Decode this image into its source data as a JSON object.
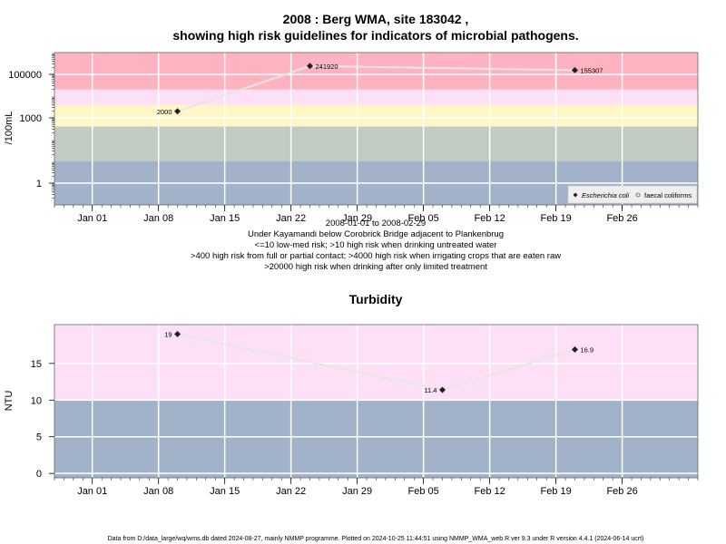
{
  "chart_data": [
    {
      "type": "scatter",
      "title_line1": "2008 : Berg WMA, site 183042 ,",
      "title_line2": "showing high risk guidelines for indicators of microbial pathogens.",
      "ylabel": "/100mL",
      "yscale": "log",
      "ylim": [
        0.1,
        1000000
      ],
      "yticks": [
        {
          "value": 1,
          "label": "1"
        },
        {
          "value": 1000,
          "label": "1000"
        },
        {
          "value": 100000,
          "label": "100000"
        }
      ],
      "xlim": [
        "2007-12-28",
        "2008-03-05"
      ],
      "xticks": [
        {
          "date": "2008-01-01",
          "label": "Jan 01"
        },
        {
          "date": "2008-01-08",
          "label": "Jan 08"
        },
        {
          "date": "2008-01-15",
          "label": "Jan 15"
        },
        {
          "date": "2008-01-22",
          "label": "Jan 22"
        },
        {
          "date": "2008-01-29",
          "label": "Jan 29"
        },
        {
          "date": "2008-02-05",
          "label": "Feb 05"
        },
        {
          "date": "2008-02-12",
          "label": "Feb 12"
        },
        {
          "date": "2008-02-19",
          "label": "Feb 19"
        },
        {
          "date": "2008-02-26",
          "label": "Feb 26"
        }
      ],
      "bands": [
        {
          "from": 0.1,
          "to": 10,
          "color": "#a2b3c9"
        },
        {
          "from": 10,
          "to": 400,
          "color": "#c2cbc1"
        },
        {
          "from": 400,
          "to": 4000,
          "color": "#fff7c6"
        },
        {
          "from": 4000,
          "to": 20000,
          "color": "#fde0f8"
        },
        {
          "from": 20000,
          "to": 1000000,
          "color": "#ffb3c1"
        }
      ],
      "series": [
        {
          "name": "Escherichia coli",
          "marker": "filled-diamond",
          "color": "#202020",
          "points": [
            {
              "x": "2008-01-10",
              "y": 2000,
              "label": "2000"
            },
            {
              "x": "2008-01-24",
              "y": 241920,
              "label": "241920"
            },
            {
              "x": "2008-02-21",
              "y": 155307,
              "label": "155307"
            }
          ]
        }
      ],
      "legend": {
        "placement": "bottom-right",
        "entries": [
          {
            "name": "Escherichia coli",
            "marker": "filled-diamond",
            "italic": true
          },
          {
            "name": "faecal coliforms",
            "marker": "open-circle",
            "italic": false
          }
        ]
      },
      "caption": [
        "2008-01-01 to 2008-02-29",
        "Under Kayamandi below Corobrick Bridge adjacent to Plankenbrug",
        "<=10 low-med risk; >10 high risk when drinking untreated water",
        ">400 high risk from full or partial contact; >4000 high risk when irrigating crops that are eaten raw",
        ">20000 high risk when drinking after only limited treatment"
      ],
      "grid": true
    },
    {
      "type": "scatter",
      "title": "Turbidity",
      "ylabel": "NTU",
      "yscale": "linear",
      "ylim": [
        -0.6,
        20.3
      ],
      "yticks": [
        {
          "value": 0,
          "label": "0"
        },
        {
          "value": 5,
          "label": "5"
        },
        {
          "value": 10,
          "label": "10"
        },
        {
          "value": 15,
          "label": "15"
        }
      ],
      "xlim": [
        "2007-12-28",
        "2008-03-05"
      ],
      "xticks": [
        {
          "date": "2008-01-01",
          "label": "Jan 01"
        },
        {
          "date": "2008-01-08",
          "label": "Jan 08"
        },
        {
          "date": "2008-01-15",
          "label": "Jan 15"
        },
        {
          "date": "2008-01-22",
          "label": "Jan 22"
        },
        {
          "date": "2008-01-29",
          "label": "Jan 29"
        },
        {
          "date": "2008-02-05",
          "label": "Feb 05"
        },
        {
          "date": "2008-02-12",
          "label": "Feb 12"
        },
        {
          "date": "2008-02-19",
          "label": "Feb 19"
        },
        {
          "date": "2008-02-26",
          "label": "Feb 26"
        }
      ],
      "bands": [
        {
          "from": -0.6,
          "to": 10,
          "color": "#a2b3c9"
        },
        {
          "from": 10,
          "to": 20.3,
          "color": "#fde0f8"
        }
      ],
      "series": [
        {
          "marker": "filled-diamond",
          "color": "#202020",
          "points": [
            {
              "x": "2008-01-10",
              "y": 19,
              "label": "19"
            },
            {
              "x": "2008-02-07",
              "y": 11.4,
              "label": "11.4"
            },
            {
              "x": "2008-02-21",
              "y": 16.9,
              "label": "16.9"
            }
          ]
        }
      ],
      "grid": true
    }
  ],
  "footer": "Data from D:/data_large/wq/wms.db dated 2024-08-27, mainly NMMP programme. Plotted on 2024-10-25 11:44:51 using NMMP_WMA_web.R ver 9.3 under R version 4.4.1 (2024-06-14 ucrt)"
}
